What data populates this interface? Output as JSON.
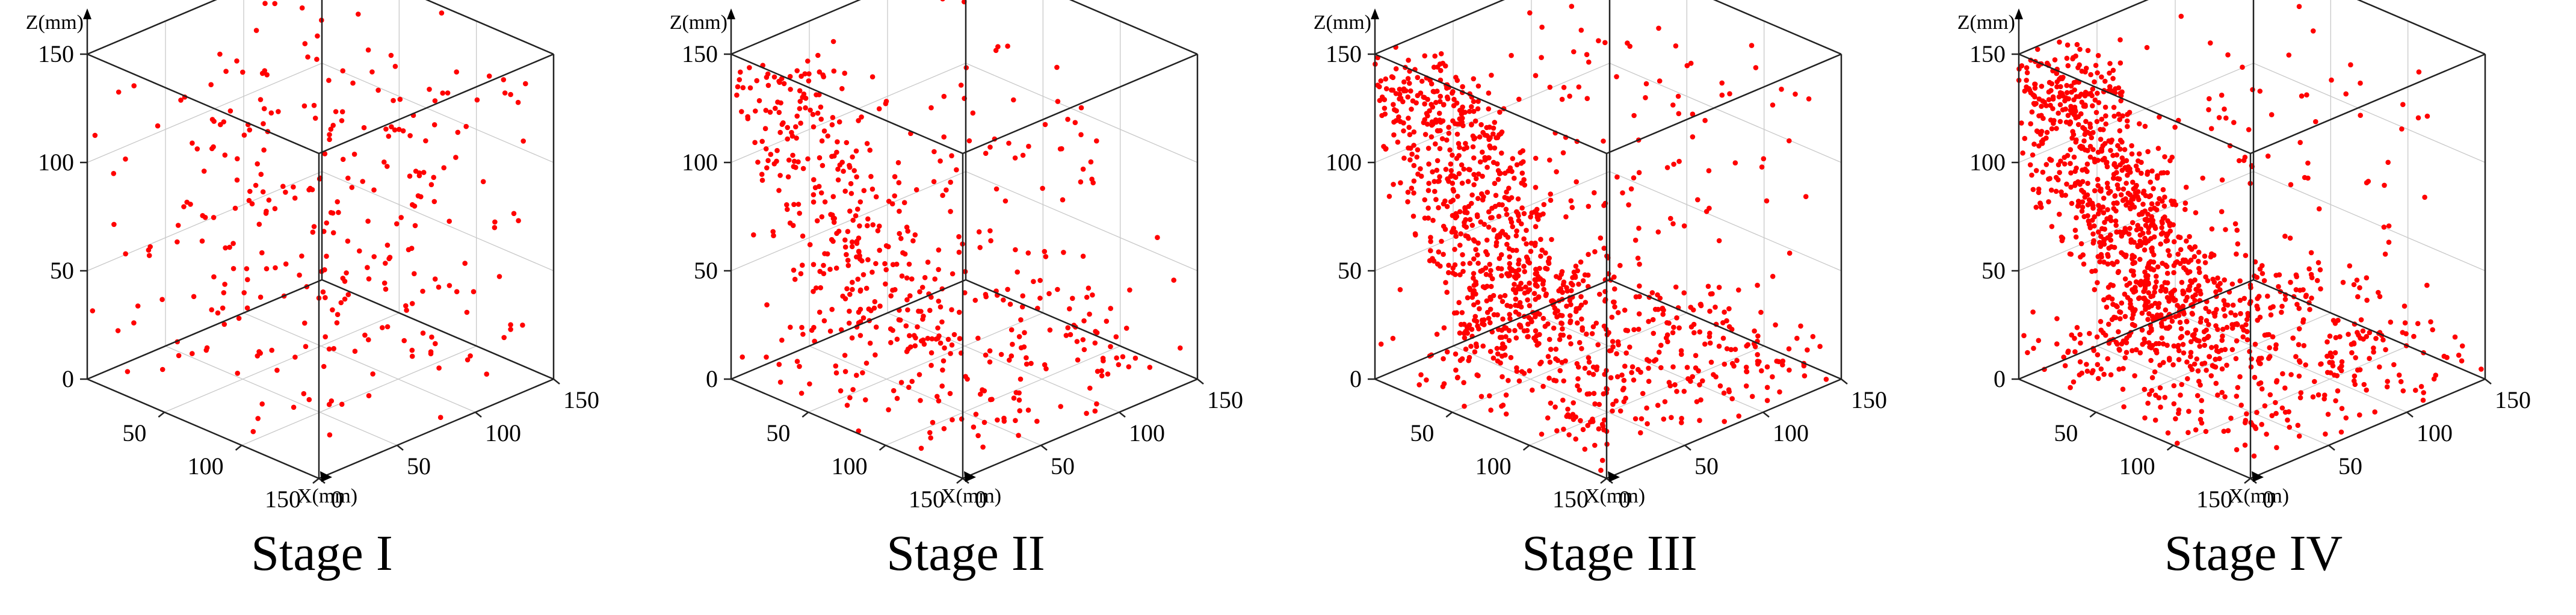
{
  "accent_color": "#ff0000",
  "axes": {
    "z_label": "Z(mm)",
    "x_label": "X(mm)",
    "z_ticks": [
      "0",
      "50",
      "100",
      "150"
    ],
    "x_ticks": [
      "0",
      "50",
      "100",
      "150"
    ],
    "y_ticks": [
      "50",
      "100",
      "150"
    ]
  },
  "chart_data": [
    {
      "type": "scatter",
      "title": "Stage I",
      "point_count": 300,
      "xlim": [
        0,
        150
      ],
      "ylim": [
        0,
        150
      ],
      "zlim": [
        0,
        150
      ],
      "xlabel": "X(mm)",
      "zlabel": "Z(mm)",
      "grid": true
    },
    {
      "type": "scatter",
      "title": "Stage II",
      "point_count": 560,
      "xlim": [
        0,
        150
      ],
      "ylim": [
        0,
        150
      ],
      "zlim": [
        0,
        150
      ],
      "xlabel": "X(mm)",
      "zlabel": "Z(mm)",
      "grid": true
    },
    {
      "type": "scatter",
      "title": "Stage III",
      "point_count": 1150,
      "xlim": [
        0,
        150
      ],
      "ylim": [
        0,
        150
      ],
      "zlim": [
        0,
        150
      ],
      "xlabel": "X(mm)",
      "zlabel": "Z(mm)",
      "grid": true
    },
    {
      "type": "scatter",
      "title": "Stage IV",
      "point_count": 1350,
      "xlim": [
        0,
        150
      ],
      "ylim": [
        0,
        150
      ],
      "zlim": [
        0,
        150
      ],
      "xlabel": "X(mm)",
      "zlabel": "Z(mm)",
      "grid": true
    }
  ]
}
